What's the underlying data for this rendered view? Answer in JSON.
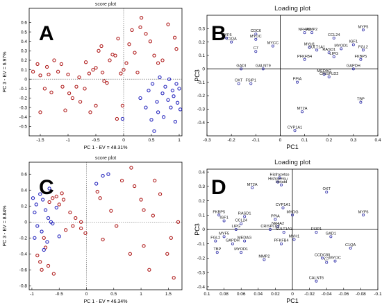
{
  "colors": {
    "red_series": "#b22222",
    "blue_series": "#2b2bbf",
    "axis": "#000000",
    "grid": "#8c8c8c",
    "loading_point": "#3333aa"
  },
  "chart_data": [
    {
      "panel_label": "A",
      "type": "scatter",
      "title": "score plot",
      "xlabel": "PC 1 - EV = 48.31%",
      "ylabel": "PC 3 - EV = 6.97%",
      "xlim": [
        -1.7,
        1.05
      ],
      "ylim": [
        -0.6,
        0.75
      ],
      "xticks": [
        -1.5,
        -1,
        -0.5,
        0,
        0.5,
        1
      ],
      "xtick_labels": [
        "-1.5",
        "-1",
        "-0.5",
        "0",
        "0.5",
        "1"
      ],
      "yticks": [
        -0.5,
        -0.4,
        -0.3,
        -0.2,
        -0.1,
        0,
        0.1,
        0.2,
        0.3,
        0.4,
        0.5,
        0.6
      ],
      "ytick_labels": [
        "-0.5",
        "-0.4",
        "-0.3",
        "-0.2",
        "-0.1",
        "0",
        "0.1",
        "0.2",
        "0.3",
        "0.4",
        "0.5",
        "0.6"
      ],
      "series": [
        {
          "color": "red",
          "points": [
            [
              -1.63,
              0.08
            ],
            [
              -1.55,
              0.16
            ],
            [
              -1.5,
              0.04
            ],
            [
              -1.42,
              -0.1
            ],
            [
              -1.38,
              0.13
            ],
            [
              -1.35,
              0.05
            ],
            [
              -1.3,
              -0.14
            ],
            [
              -1.25,
              0.2
            ],
            [
              -1.18,
              0.08
            ],
            [
              -1.12,
              0.16
            ],
            [
              -1.1,
              -0.08
            ],
            [
              -1.05,
              -0.33
            ],
            [
              -1.0,
              0.05
            ],
            [
              -0.98,
              -0.15
            ],
            [
              -0.92,
              -0.2
            ],
            [
              -0.85,
              -0.08
            ],
            [
              -0.8,
              0.02
            ],
            [
              -0.78,
              -0.24
            ],
            [
              -0.7,
              -0.1
            ],
            [
              -0.68,
              0.18
            ],
            [
              -0.62,
              0.06
            ],
            [
              -0.55,
              0.1
            ],
            [
              -0.5,
              0.12
            ],
            [
              -0.45,
              0.3
            ],
            [
              -0.4,
              0.35
            ],
            [
              -0.35,
              -0.02
            ],
            [
              -0.3,
              -0.04
            ],
            [
              -0.25,
              0.2
            ],
            [
              -0.2,
              0.26
            ],
            [
              -0.15,
              0.25
            ],
            [
              -0.1,
              0.43
            ],
            [
              -0.05,
              0.06
            ],
            [
              0.0,
              0.1
            ],
            [
              0.05,
              0.17
            ],
            [
              0.1,
              0.37
            ],
            [
              0.15,
              0.52
            ],
            [
              0.2,
              0.28
            ],
            [
              0.25,
              0.07
            ],
            [
              0.3,
              0.55
            ],
            [
              0.32,
              0.65
            ],
            [
              0.4,
              0.48
            ],
            [
              0.48,
              0.4
            ],
            [
              0.55,
              0.25
            ],
            [
              0.62,
              0.17
            ],
            [
              0.7,
              0.2
            ],
            [
              0.8,
              0.58
            ],
            [
              0.92,
              0.44
            ],
            [
              0.95,
              0.32
            ],
            [
              -1.5,
              -0.35
            ],
            [
              -0.6,
              -0.35
            ],
            [
              -0.5,
              -0.28
            ],
            [
              -0.12,
              -0.42
            ],
            [
              -0.02,
              -0.28
            ],
            [
              -0.38,
              0.07
            ]
          ]
        },
        {
          "color": "blue",
          "points": [
            [
              -0.02,
              -0.42
            ],
            [
              0.3,
              -0.2
            ],
            [
              0.4,
              -0.3
            ],
            [
              0.45,
              -0.12
            ],
            [
              0.5,
              -0.43
            ],
            [
              0.52,
              -0.05
            ],
            [
              0.55,
              -0.55
            ],
            [
              0.6,
              -0.24
            ],
            [
              0.62,
              -0.35
            ],
            [
              0.65,
              0.02
            ],
            [
              0.7,
              -0.15
            ],
            [
              0.72,
              -0.4
            ],
            [
              0.75,
              -0.08
            ],
            [
              0.8,
              -0.22
            ],
            [
              0.82,
              0.0
            ],
            [
              0.85,
              -0.3
            ],
            [
              0.88,
              -0.12
            ],
            [
              0.9,
              -0.18
            ],
            [
              0.93,
              -0.45
            ],
            [
              0.95,
              -0.05
            ],
            [
              0.97,
              -0.25
            ],
            [
              1.0,
              -0.1
            ],
            [
              1.02,
              -0.32
            ]
          ]
        }
      ]
    },
    {
      "panel_label": "B",
      "type": "scatter",
      "title": "Loading plot",
      "xlabel": "PC1",
      "ylabel": "PC3",
      "xlim": [
        -0.3,
        0.4
      ],
      "ylim": [
        -0.5,
        0.4
      ],
      "xticks": [
        -0.3,
        -0.2,
        -0.1,
        0,
        0.1,
        0.2,
        0.3,
        0.4
      ],
      "xtick_labels": [
        "-0.3",
        "-0.2",
        "-0.1",
        "0",
        "0.1",
        "0.2",
        "0.3",
        "0.4"
      ],
      "yticks": [
        -0.4,
        -0.3,
        -0.2,
        -0.1,
        0,
        0.1,
        0.2,
        0.3
      ],
      "ytick_labels": [
        "-0.4",
        "-0.3",
        "-0.2",
        "-0.1",
        "0",
        "0.1",
        "0.2",
        "0.3"
      ],
      "genes": [
        {
          "label": "MYF5",
          "x": 0.34,
          "y": 0.29
        },
        {
          "label": "CCL24",
          "x": 0.22,
          "y": 0.23
        },
        {
          "label": "IGF1",
          "x": 0.3,
          "y": 0.18
        },
        {
          "label": "FGL2",
          "x": 0.34,
          "y": 0.14
        },
        {
          "label": "MYOD1",
          "x": 0.25,
          "y": 0.15
        },
        {
          "label": "RASD1",
          "x": 0.2,
          "y": 0.12
        },
        {
          "label": "LIPG",
          "x": 0.22,
          "y": 0.09
        },
        {
          "label": "FKBP5",
          "x": 0.33,
          "y": 0.07
        },
        {
          "label": "GAPDH",
          "x": 0.3,
          "y": 0.0
        },
        {
          "label": "MMP2",
          "x": 0.13,
          "y": 0.27
        },
        {
          "label": "NR4A2",
          "x": 0.1,
          "y": 0.27
        },
        {
          "label": "SULT1A1",
          "x": 0.15,
          "y": 0.14
        },
        {
          "label": "MYH1",
          "x": 0.12,
          "y": 0.16
        },
        {
          "label": "PFKFB4",
          "x": 0.1,
          "y": 0.07
        },
        {
          "label": "MEDAG",
          "x": 0.18,
          "y": -0.04
        },
        {
          "label": "CRISPLD2",
          "x": 0.2,
          "y": -0.06
        },
        {
          "label": "PPIA",
          "x": 0.07,
          "y": -0.1
        },
        {
          "label": "TBP",
          "x": 0.33,
          "y": -0.25
        },
        {
          "label": "MT2A",
          "x": 0.09,
          "y": -0.32
        },
        {
          "label": "CYP1A1",
          "x": 0.06,
          "y": -0.46
        },
        {
          "label": "CDC6",
          "x": -0.1,
          "y": 0.26
        },
        {
          "label": "C1QA",
          "x": -0.2,
          "y": 0.2
        },
        {
          "label": "MYF6",
          "x": -0.22,
          "y": 0.23
        },
        {
          "label": "MYOC",
          "x": -0.1,
          "y": 0.22
        },
        {
          "label": "MYCC",
          "x": -0.03,
          "y": 0.17
        },
        {
          "label": "C7",
          "x": -0.1,
          "y": 0.13
        },
        {
          "label": "GADI",
          "x": -0.16,
          "y": 0.0
        },
        {
          "label": "GALNT9",
          "x": -0.07,
          "y": 0.0
        },
        {
          "label": "OXT",
          "x": -0.17,
          "y": -0.11
        },
        {
          "label": "FSIP1",
          "x": -0.12,
          "y": -0.11
        }
      ]
    },
    {
      "panel_label": "C",
      "type": "scatter",
      "title": "score plot",
      "xlabel": "PC 1 - EV = 46.34%",
      "ylabel": "PC 3 - EV = 8.84%",
      "xlim": [
        -1.05,
        1.75
      ],
      "ylim": [
        -0.85,
        0.75
      ],
      "xticks": [
        -1,
        -0.5,
        0,
        0.5,
        1,
        1.5
      ],
      "xtick_labels": [
        "-1",
        "-0.5",
        "0",
        "0.5",
        "1",
        "1.5"
      ],
      "yticks": [
        -0.8,
        -0.6,
        -0.4,
        -0.2,
        0,
        0.2,
        0.4,
        0.6
      ],
      "ytick_labels": [
        "-0.8",
        "-0.6",
        "-0.4",
        "-0.2",
        "0",
        "0.2",
        "0.4",
        "0.6"
      ],
      "series": [
        {
          "color": "red",
          "points": [
            [
              -0.9,
              -0.42
            ],
            [
              -0.85,
              -0.5
            ],
            [
              -0.82,
              -0.6
            ],
            [
              -0.78,
              -0.2
            ],
            [
              -0.75,
              -0.32
            ],
            [
              -0.7,
              -0.55
            ],
            [
              -0.68,
              0.25
            ],
            [
              -0.62,
              0.3
            ],
            [
              -0.6,
              -0.65
            ],
            [
              -0.55,
              0.32
            ],
            [
              -0.5,
              0.22
            ],
            [
              -0.45,
              0.36
            ],
            [
              -0.42,
              0.28
            ],
            [
              -0.38,
              -0.1
            ],
            [
              -0.3,
              0.12
            ],
            [
              -0.25,
              -0.05
            ],
            [
              -0.2,
              0.05
            ],
            [
              -0.1,
              0.0
            ],
            [
              0.2,
              0.38
            ],
            [
              0.25,
              0.3
            ],
            [
              0.3,
              -0.22
            ],
            [
              0.45,
              0.14
            ],
            [
              0.55,
              -0.05
            ],
            [
              0.65,
              0.52
            ],
            [
              0.8,
              -0.4
            ],
            [
              0.82,
              0.68
            ],
            [
              0.88,
              0.45
            ],
            [
              1.0,
              0.28
            ],
            [
              1.05,
              0.15
            ],
            [
              1.05,
              -0.3
            ],
            [
              1.15,
              -0.6
            ],
            [
              1.22,
              0.08
            ],
            [
              1.25,
              0.52
            ],
            [
              1.35,
              0.35
            ],
            [
              1.48,
              -0.4
            ],
            [
              1.55,
              -0.2
            ],
            [
              1.6,
              -0.7
            ],
            [
              1.68,
              0.0
            ],
            [
              -0.1,
              -0.08
            ],
            [
              -0.02,
              -0.14
            ]
          ]
        },
        {
          "color": "blue",
          "points": [
            [
              -0.98,
              0.3
            ],
            [
              -0.92,
              0.22
            ],
            [
              -0.95,
              0.12
            ],
            [
              -0.85,
              0.35
            ],
            [
              -0.9,
              -0.05
            ],
            [
              -0.8,
              0.28
            ],
            [
              -0.82,
              -0.12
            ],
            [
              -0.75,
              0.15
            ],
            [
              -0.7,
              0.05
            ],
            [
              -0.72,
              -0.25
            ],
            [
              -0.78,
              -0.35
            ],
            [
              -0.68,
              0.42
            ],
            [
              -0.62,
              -0.02
            ],
            [
              -0.55,
              0.18
            ],
            [
              -0.5,
              -0.18
            ],
            [
              0.18,
              0.48
            ],
            [
              0.3,
              0.58
            ],
            [
              0.4,
              0.6
            ],
            [
              -0.65,
              0.0
            ],
            [
              -0.95,
              -0.2
            ]
          ]
        }
      ]
    },
    {
      "panel_label": "D",
      "type": "scatter",
      "title": "Loading plot",
      "xlabel": "PC1",
      "ylabel": "PC3",
      "xlim": [
        0.1,
        -0.1
      ],
      "ylim": [
        -0.42,
        0.42
      ],
      "xticks": [
        0.1,
        0.08,
        0.06,
        0.04,
        0.02,
        0,
        -0.02,
        -0.04,
        -0.06,
        -0.08,
        -0.1
      ],
      "xtick_labels": [
        "0.1",
        "0.08",
        "0.06",
        "0.04",
        "0.02",
        "0",
        "-0.02",
        "-0.04",
        "-0.06",
        "-0.08",
        "-0.1"
      ],
      "yticks": [
        -0.4,
        -0.3,
        -0.2,
        -0.1,
        0,
        0.1,
        0.2,
        0.3,
        0.4
      ],
      "ytick_labels": [
        "-0.4",
        "-0.3",
        "-0.2",
        "-0.1",
        "0",
        "0.1",
        "0.2",
        "0.3",
        "0.4"
      ],
      "genes": [
        {
          "label": "Hisfrazetso",
          "x": 0.015,
          "y": 0.36
        },
        {
          "label": "Hisfrazetsu",
          "x": 0.017,
          "y": 0.33
        },
        {
          "label": "Hetatd",
          "x": 0.013,
          "y": 0.31
        },
        {
          "label": "MT2A",
          "x": 0.047,
          "y": 0.29
        },
        {
          "label": "OXT",
          "x": -0.04,
          "y": 0.26
        },
        {
          "label": "CYP1A1",
          "x": 0.011,
          "y": 0.15
        },
        {
          "label": "MYOG",
          "x": 0.0,
          "y": 0.1
        },
        {
          "label": "MYF6",
          "x": -0.083,
          "y": 0.1
        },
        {
          "label": "FKBP5",
          "x": 0.086,
          "y": 0.1
        },
        {
          "label": "RASD1",
          "x": 0.056,
          "y": 0.09
        },
        {
          "label": "PPIA",
          "x": 0.02,
          "y": 0.07
        },
        {
          "label": "IGF1",
          "x": 0.08,
          "y": 0.06
        },
        {
          "label": "CCL24",
          "x": 0.06,
          "y": 0.04
        },
        {
          "label": "NR4A2",
          "x": 0.017,
          "y": 0.02
        },
        {
          "label": "LIPG",
          "x": 0.066,
          "y": 0.0
        },
        {
          "label": "CRISPLD2",
          "x": 0.026,
          "y": 0.0
        },
        {
          "label": "SULT1A1",
          "x": 0.01,
          "y": -0.02
        },
        {
          "label": "FSIP1",
          "x": -0.028,
          "y": -0.02
        },
        {
          "label": "MYF5",
          "x": 0.08,
          "y": -0.05
        },
        {
          "label": "FGL2",
          "x": 0.09,
          "y": -0.08
        },
        {
          "label": "MEDAG",
          "x": 0.056,
          "y": -0.08
        },
        {
          "label": "GAPDH",
          "x": 0.07,
          "y": -0.1
        },
        {
          "label": "MYH1",
          "x": -0.002,
          "y": -0.07
        },
        {
          "label": "PFKFB4",
          "x": 0.013,
          "y": -0.1
        },
        {
          "label": "GAD1",
          "x": -0.045,
          "y": -0.05
        },
        {
          "label": "C1QA",
          "x": -0.068,
          "y": -0.13
        },
        {
          "label": "TBP",
          "x": 0.088,
          "y": -0.16
        },
        {
          "label": "MYOD1",
          "x": 0.06,
          "y": -0.16
        },
        {
          "label": "MMP2",
          "x": 0.033,
          "y": -0.21
        },
        {
          "label": "CCDC80",
          "x": -0.035,
          "y": -0.2
        },
        {
          "label": "C7",
          "x": -0.04,
          "y": -0.23
        },
        {
          "label": "MYOC",
          "x": -0.05,
          "y": -0.22
        },
        {
          "label": "CALNT6",
          "x": -0.028,
          "y": -0.36
        }
      ]
    }
  ]
}
